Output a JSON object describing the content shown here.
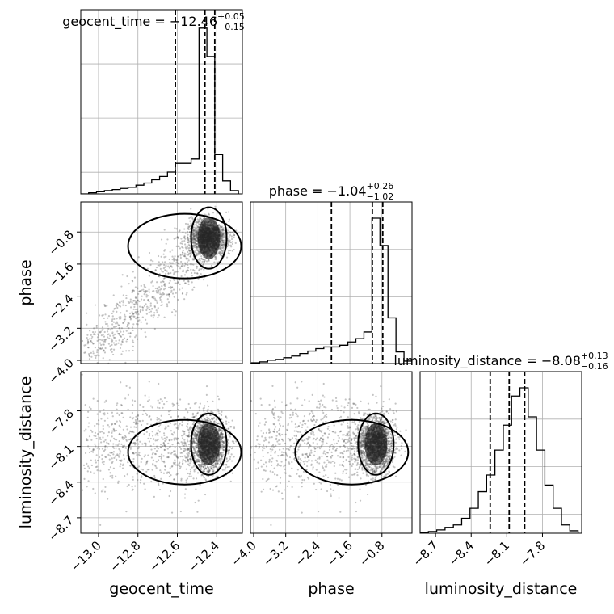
{
  "chart_data": {
    "type": "corner",
    "parameters": [
      "geocent_time",
      "phase",
      "luminosity_distance"
    ],
    "axis_labels": {
      "geocent_time": "geocent_time",
      "phase": "phase",
      "luminosity_distance": "luminosity_distance"
    },
    "ranges": {
      "geocent_time": [
        -13.09,
        -12.27
      ],
      "phase": [
        -4.08,
        -0.05
      ],
      "luminosity_distance": [
        -8.83,
        -7.47
      ]
    },
    "ticks": {
      "geocent_time": {
        "values": [
          -13.0,
          -12.8,
          -12.6,
          -12.4
        ],
        "labels": [
          "−13.0",
          "−12.8",
          "−12.6",
          "−12.4"
        ]
      },
      "phase": {
        "values": [
          -4.0,
          -3.2,
          -2.4,
          -1.6,
          -0.8
        ],
        "labels": [
          "−4.0",
          "−3.2",
          "−2.4",
          "−1.6",
          "−0.8"
        ]
      },
      "luminosity_distance": {
        "values": [
          -8.7,
          -8.4,
          -8.1,
          -7.8
        ],
        "labels": [
          "−8.7",
          "−8.4",
          "−8.1",
          "−7.8"
        ]
      }
    },
    "titles": [
      {
        "param": "geocent_time",
        "prefix": "geocent_time = −12.46",
        "sup": "+0.05",
        "sub": "−0.15"
      },
      {
        "param": "phase",
        "prefix": "phase = −1.04",
        "sup": "+0.26",
        "sub": "−1.02"
      },
      {
        "param": "luminosity_distance",
        "prefix": "luminosity_distance = −8.08",
        "sup": "+0.13",
        "sub": "−0.16"
      }
    ],
    "quantiles": {
      "geocent_time": [
        -12.61,
        -12.46,
        -12.41
      ],
      "phase": [
        -2.06,
        -1.04,
        -0.78
      ],
      "luminosity_distance": [
        -8.24,
        -8.08,
        -7.95
      ]
    },
    "histograms": {
      "geocent_time": {
        "edges": [
          -13.09,
          -13.05,
          -13.01,
          -12.97,
          -12.93,
          -12.89,
          -12.85,
          -12.81,
          -12.77,
          -12.73,
          -12.69,
          -12.65,
          -12.61,
          -12.57,
          -12.53,
          -12.49,
          -12.45,
          -12.41,
          -12.37,
          -12.33,
          -12.29
        ],
        "counts": [
          0,
          1,
          2,
          3,
          4,
          5,
          6,
          8,
          10,
          13,
          16,
          20,
          28,
          28,
          32,
          152,
          126,
          36,
          12,
          3
        ]
      },
      "phase": {
        "edges": [
          -4.05,
          -3.85,
          -3.65,
          -3.45,
          -3.25,
          -3.05,
          -2.85,
          -2.65,
          -2.45,
          -2.25,
          -2.05,
          -1.85,
          -1.65,
          -1.45,
          -1.25,
          -1.05,
          -0.85,
          -0.65,
          -0.45,
          -0.25,
          -0.05
        ],
        "counts": [
          1,
          2,
          4,
          5,
          7,
          9,
          12,
          15,
          18,
          20,
          20,
          22,
          26,
          30,
          38,
          175,
          142,
          55,
          14,
          3
        ]
      },
      "luminosity_distance": {
        "edges": [
          -8.83,
          -8.76,
          -8.69,
          -8.62,
          -8.55,
          -8.48,
          -8.41,
          -8.34,
          -8.27,
          -8.2,
          -8.13,
          -8.06,
          -7.99,
          -7.92,
          -7.85,
          -7.78,
          -7.71,
          -7.64,
          -7.57,
          -7.5
        ],
        "counts": [
          1,
          2,
          4,
          7,
          10,
          18,
          30,
          50,
          70,
          100,
          130,
          165,
          175,
          140,
          100,
          58,
          30,
          10,
          3
        ]
      }
    }
  }
}
